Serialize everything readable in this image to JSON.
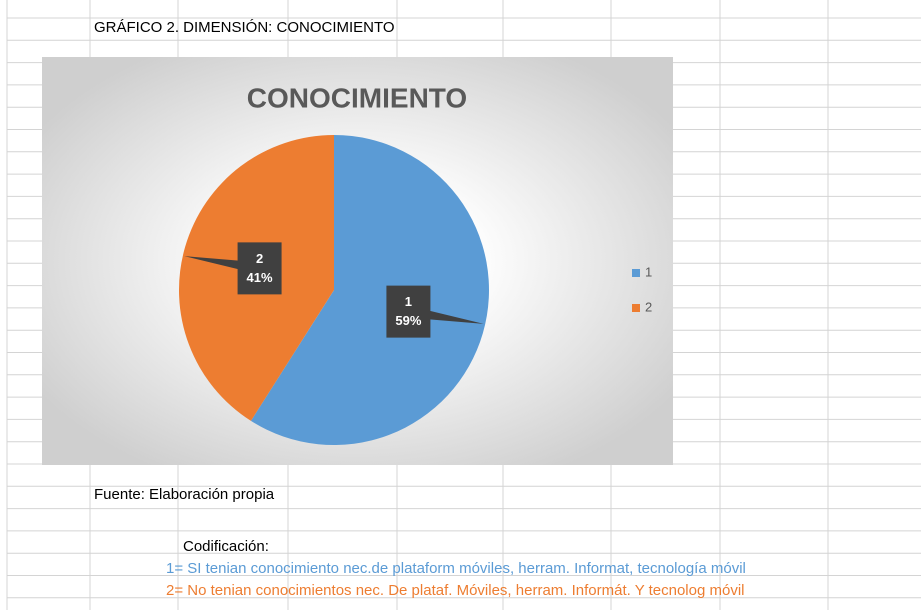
{
  "sheet": {
    "heading": "GRÁFICO 2. DIMENSIÓN: CONOCIMIENTO",
    "source": "Fuente: Elaboración propia",
    "coding_title": "Codificación:",
    "coding": [
      "1= SI tenian conocimiento nec.de plataform móviles, herram. Informat, tecnología móvil",
      "2= No tenian conocimientos nec. De plataf. Móviles, herram. Informát. Y tecnolog móvil"
    ]
  },
  "chart_data": {
    "type": "pie",
    "title": "CONOCIMIENTO",
    "categories": [
      "1",
      "2"
    ],
    "values": [
      59,
      41
    ],
    "value_labels": [
      "59%",
      "41%"
    ],
    "colors": [
      "#5b9bd5",
      "#ed7d31"
    ],
    "legend": "right"
  }
}
